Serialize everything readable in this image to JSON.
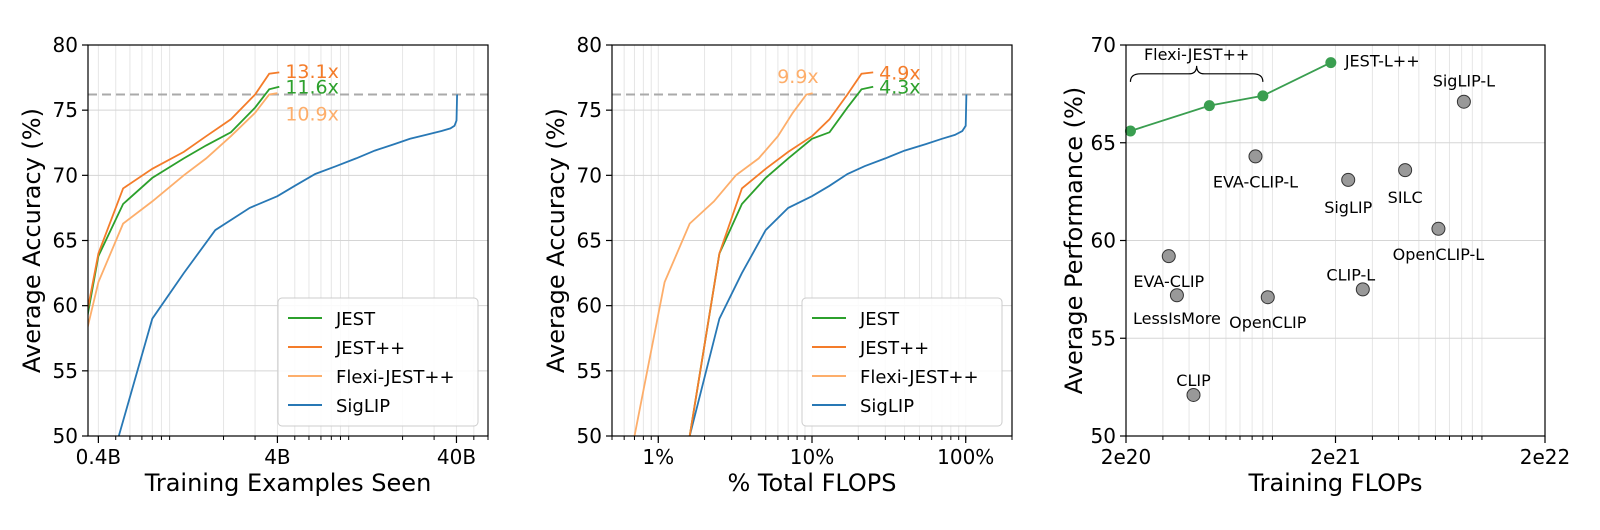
{
  "colors": {
    "JEST": "#2ca02c",
    "JEST++": "#f47c2a",
    "Flexi-JEST++": "#fdae6b",
    "SigLIP": "#2878b5",
    "jest_point": "#3a9e50",
    "other_point": "#999999",
    "ref_line": "#aaaaaa"
  },
  "chart_data": [
    {
      "type": "line",
      "xlabel": "Training Examples Seen",
      "ylabel": "Average Accuracy (%)",
      "xscale": "log",
      "xlim": [
        0.35,
        60
      ],
      "ylim": [
        50,
        80
      ],
      "xtick_labels": [
        "0.4B",
        "4B",
        "40B"
      ],
      "xtick_values": [
        0.4,
        4,
        40
      ],
      "ytick_labels": [
        "50",
        "55",
        "60",
        "65",
        "70",
        "75",
        "80"
      ],
      "ytick_values": [
        50,
        55,
        60,
        65,
        70,
        75,
        80
      ],
      "legend_position": "lower-right",
      "reference_y": 76.2,
      "series": [
        {
          "name": "JEST",
          "x": [
            0.33,
            0.4,
            0.55,
            0.8,
            1.2,
            1.6,
            2.2,
            3.0,
            3.6,
            4.1
          ],
          "y": [
            57.5,
            63.8,
            67.8,
            69.8,
            71.3,
            72.3,
            73.3,
            75.2,
            76.6,
            76.8
          ]
        },
        {
          "name": "JEST++",
          "x": [
            0.33,
            0.4,
            0.55,
            0.8,
            1.2,
            1.6,
            2.2,
            3.0,
            3.6,
            4.1
          ],
          "y": [
            58.0,
            64.0,
            69.0,
            70.5,
            71.8,
            73.0,
            74.3,
            76.2,
            77.8,
            77.9
          ]
        },
        {
          "name": "Flexi-JEST++",
          "x": [
            0.33,
            0.4,
            0.55,
            0.8,
            1.2,
            1.6,
            2.2,
            3.0,
            3.6,
            4.0
          ],
          "y": [
            57.0,
            61.8,
            66.3,
            68.0,
            70.0,
            71.3,
            73.0,
            74.8,
            76.2,
            76.3
          ]
        },
        {
          "name": "SigLIP",
          "x": [
            0.52,
            0.8,
            1.2,
            1.8,
            2.8,
            4.0,
            5.0,
            6.5,
            8.5,
            11,
            14,
            18,
            22,
            27,
            33,
            37,
            39,
            40,
            40.3
          ],
          "y": [
            50.0,
            59.0,
            62.5,
            65.8,
            67.5,
            68.4,
            69.2,
            70.1,
            70.7,
            71.3,
            71.9,
            72.4,
            72.8,
            73.1,
            73.4,
            73.6,
            73.8,
            74.2,
            76.2
          ]
        }
      ],
      "annotations": [
        {
          "text": "13.1x",
          "series": "JEST++",
          "x": 4.1,
          "y": 78.0
        },
        {
          "text": "11.6x",
          "series": "JEST",
          "x": 4.1,
          "y": 76.8
        },
        {
          "text": "10.9x",
          "series": "Flexi-JEST++",
          "x": 4.1,
          "y": 75.3
        }
      ]
    },
    {
      "type": "line",
      "xlabel": "% Total FLOPS",
      "ylabel": "Average Accuracy (%)",
      "xscale": "log",
      "xlim": [
        0.5,
        200
      ],
      "ylim": [
        50,
        80
      ],
      "xtick_labels": [
        "1%",
        "10%",
        "100%"
      ],
      "xtick_values": [
        1,
        10,
        100
      ],
      "ytick_labels": [
        "50",
        "55",
        "60",
        "65",
        "70",
        "75",
        "80"
      ],
      "ytick_values": [
        50,
        55,
        60,
        65,
        70,
        75,
        80
      ],
      "legend_position": "lower-right",
      "reference_y": 76.2,
      "series": [
        {
          "name": "JEST",
          "x": [
            1.6,
            2.5,
            3.5,
            5,
            7,
            10,
            13,
            17,
            21,
            25
          ],
          "y": [
            50.0,
            64.0,
            67.8,
            69.8,
            71.3,
            72.8,
            73.3,
            75.2,
            76.6,
            76.8
          ]
        },
        {
          "name": "JEST++",
          "x": [
            1.6,
            2.5,
            3.5,
            5,
            7,
            10,
            13,
            17,
            21,
            25
          ],
          "y": [
            50.0,
            64.0,
            69.0,
            70.5,
            71.8,
            73.0,
            74.3,
            76.2,
            77.8,
            77.9
          ]
        },
        {
          "name": "Flexi-JEST++",
          "x": [
            0.7,
            1.1,
            1.6,
            2.3,
            3.2,
            4.5,
            6.0,
            7.5,
            9.2,
            10.1
          ],
          "y": [
            50.0,
            61.8,
            66.3,
            68.0,
            70.0,
            71.3,
            73.0,
            74.8,
            76.2,
            76.3
          ]
        },
        {
          "name": "SigLIP",
          "x": [
            1.6,
            2.5,
            3.5,
            5,
            7,
            10,
            13,
            17,
            22,
            30,
            40,
            55,
            70,
            85,
            95,
            100,
            101
          ],
          "y": [
            50.0,
            59.0,
            62.5,
            65.8,
            67.5,
            68.4,
            69.2,
            70.1,
            70.7,
            71.3,
            71.9,
            72.4,
            72.8,
            73.1,
            73.4,
            73.8,
            76.2
          ]
        }
      ],
      "annotations": [
        {
          "text": "9.9x",
          "series": "Flexi-JEST++",
          "x": 10.1,
          "y": 76.3
        },
        {
          "text": "4.9x",
          "series": "JEST++",
          "x": 25,
          "y": 77.9
        },
        {
          "text": "4.3x",
          "series": "JEST",
          "x": 25,
          "y": 76.8
        }
      ]
    },
    {
      "type": "scatter",
      "xlabel": "Training FLOPs",
      "ylabel": "Average Performance (%)",
      "xscale": "log",
      "xlim": [
        2e+20,
        2e+22
      ],
      "ylim": [
        50,
        70
      ],
      "xtick_labels": [
        "2e20",
        "2e21",
        "2e22"
      ],
      "xtick_values": [
        2e+20,
        2e+21,
        2e+22
      ],
      "ytick_labels": [
        "50",
        "55",
        "60",
        "65",
        "70"
      ],
      "ytick_values": [
        50,
        55,
        60,
        65,
        70
      ],
      "jest_line": {
        "x": [
          2.1e+20,
          5e+20,
          9e+20,
          1.9e+21
        ],
        "y": [
          65.6,
          66.9,
          67.4,
          69.1
        ]
      },
      "group_label": "Flexi-JEST++",
      "points": [
        {
          "label": "JEST-L++",
          "x": 1.9e+21,
          "y": 69.1,
          "group": "jest"
        },
        {
          "label": "SigLIP-L",
          "x": 8.2e+21,
          "y": 67.1,
          "group": "other"
        },
        {
          "label": "EVA-CLIP-L",
          "x": 8.3e+20,
          "y": 64.3,
          "group": "other"
        },
        {
          "label": "SigLIP",
          "x": 2.3e+21,
          "y": 63.1,
          "group": "other"
        },
        {
          "label": "SILC",
          "x": 4.3e+21,
          "y": 63.6,
          "group": "other"
        },
        {
          "label": "OpenCLIP-L",
          "x": 6.2e+21,
          "y": 60.6,
          "group": "other"
        },
        {
          "label": "EVA-CLIP",
          "x": 3.2e+20,
          "y": 59.2,
          "group": "other"
        },
        {
          "label": "LessIsMore",
          "x": 3.5e+20,
          "y": 57.2,
          "group": "other"
        },
        {
          "label": "OpenCLIP",
          "x": 9.5e+20,
          "y": 57.1,
          "group": "other"
        },
        {
          "label": "CLIP-L",
          "x": 2.7e+21,
          "y": 57.5,
          "group": "other"
        },
        {
          "label": "CLIP",
          "x": 4.2e+20,
          "y": 52.1,
          "group": "other"
        }
      ]
    }
  ]
}
